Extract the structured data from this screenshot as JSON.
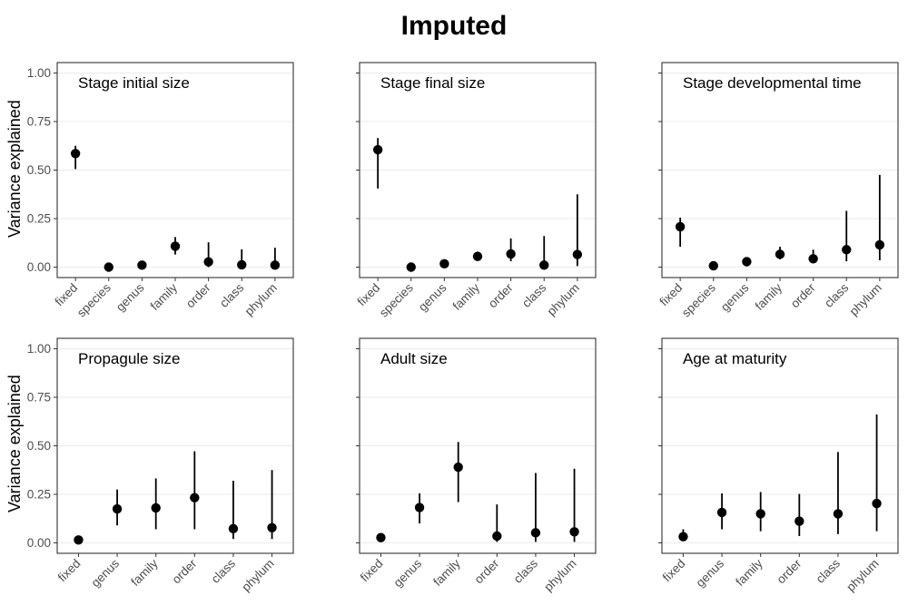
{
  "title": "Imputed",
  "y_axis_label": "Variance explained",
  "y_ticks": [
    "0.00",
    "0.25",
    "0.50",
    "0.75",
    "1.00"
  ],
  "chart_data": [
    {
      "type": "scatter",
      "title": "Stage initial size",
      "ylabel": "Variance explained",
      "ylim": [
        0,
        1
      ],
      "grid": true,
      "categories": [
        "fixed",
        "species",
        "genus",
        "family",
        "order",
        "class",
        "phylum"
      ],
      "values": [
        0.585,
        0.0,
        0.01,
        0.108,
        0.027,
        0.012,
        0.01
      ],
      "lower": [
        0.505,
        0.0,
        0.005,
        0.065,
        0.0,
        0.0,
        0.0
      ],
      "upper": [
        0.625,
        0.005,
        0.02,
        0.155,
        0.128,
        0.092,
        0.1
      ]
    },
    {
      "type": "scatter",
      "title": "Stage final size",
      "ylabel": "",
      "ylim": [
        0,
        1
      ],
      "grid": true,
      "categories": [
        "fixed",
        "species",
        "genus",
        "family",
        "order",
        "class",
        "phylum"
      ],
      "values": [
        0.605,
        0.0,
        0.017,
        0.055,
        0.068,
        0.01,
        0.065
      ],
      "lower": [
        0.405,
        0.0,
        0.01,
        0.035,
        0.03,
        0.0,
        0.005
      ],
      "upper": [
        0.665,
        0.005,
        0.025,
        0.08,
        0.148,
        0.16,
        0.375
      ]
    },
    {
      "type": "scatter",
      "title": "Stage developmental time",
      "ylabel": "",
      "ylim": [
        0,
        1
      ],
      "grid": true,
      "categories": [
        "fixed",
        "species",
        "genus",
        "family",
        "order",
        "class",
        "phylum"
      ],
      "values": [
        0.208,
        0.007,
        0.028,
        0.066,
        0.043,
        0.09,
        0.115
      ],
      "lower": [
        0.105,
        0.0,
        0.02,
        0.04,
        0.02,
        0.03,
        0.035
      ],
      "upper": [
        0.255,
        0.015,
        0.035,
        0.105,
        0.09,
        0.29,
        0.475
      ]
    },
    {
      "type": "scatter",
      "title": "Propagule size",
      "ylabel": "Variance explained",
      "ylim": [
        0,
        1
      ],
      "grid": true,
      "categories": [
        "fixed",
        "genus",
        "family",
        "order",
        "class",
        "phylum"
      ],
      "values": [
        0.015,
        0.175,
        0.18,
        0.233,
        0.073,
        0.078
      ],
      "lower": [
        0.0,
        0.09,
        0.07,
        0.07,
        0.02,
        0.02
      ],
      "upper": [
        0.03,
        0.275,
        0.332,
        0.472,
        0.32,
        0.375
      ]
    },
    {
      "type": "scatter",
      "title": "Adult size",
      "ylabel": "",
      "ylim": [
        0,
        1
      ],
      "grid": true,
      "categories": [
        "fixed",
        "genus",
        "family",
        "order",
        "class",
        "phylum"
      ],
      "values": [
        0.027,
        0.182,
        0.39,
        0.035,
        0.052,
        0.057
      ],
      "lower": [
        0.01,
        0.1,
        0.21,
        0.005,
        0.005,
        0.005
      ],
      "upper": [
        0.05,
        0.255,
        0.52,
        0.198,
        0.36,
        0.382
      ]
    },
    {
      "type": "scatter",
      "title": "Age at maturity",
      "ylabel": "",
      "ylim": [
        0,
        1
      ],
      "grid": true,
      "categories": [
        "fixed",
        "genus",
        "family",
        "order",
        "class",
        "phylum"
      ],
      "values": [
        0.032,
        0.157,
        0.15,
        0.112,
        0.15,
        0.203
      ],
      "lower": [
        0.01,
        0.07,
        0.06,
        0.035,
        0.045,
        0.06
      ],
      "upper": [
        0.07,
        0.255,
        0.262,
        0.252,
        0.468,
        0.662
      ]
    }
  ]
}
